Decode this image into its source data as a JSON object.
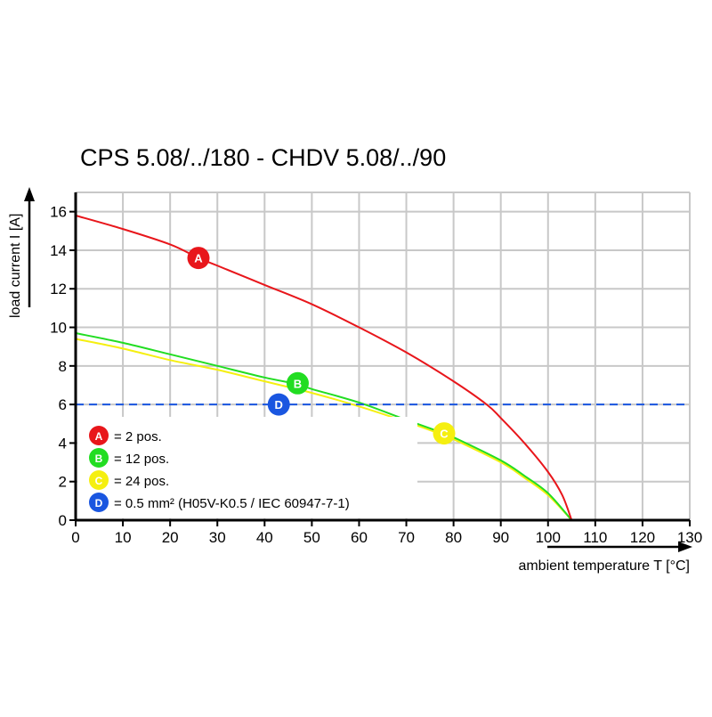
{
  "chart_data": {
    "type": "line",
    "title": "CPS 5.08/../180 - CHDV 5.08/../90",
    "xlabel": "ambient temperature T [°C]",
    "ylabel": "load current I [A]",
    "xlim": [
      0,
      130
    ],
    "ylim": [
      0,
      17
    ],
    "xticks": [
      0,
      10,
      20,
      30,
      40,
      50,
      60,
      70,
      80,
      90,
      100,
      110,
      120,
      130
    ],
    "yticks": [
      0,
      2,
      4,
      6,
      8,
      10,
      12,
      14,
      16
    ],
    "grid": true,
    "legend_placement": "bottom-left",
    "series": [
      {
        "name": "A",
        "label": "= 2 pos.",
        "color": "#e8161b",
        "marker": [
          26,
          13.6
        ],
        "x": [
          0,
          10,
          20,
          26,
          30,
          40,
          50,
          60,
          70,
          80,
          87,
          90,
          95,
          100,
          103,
          105
        ],
        "y": [
          15.8,
          15.1,
          14.3,
          13.6,
          13.2,
          12.2,
          11.2,
          10.0,
          8.7,
          7.2,
          6.0,
          5.3,
          4.0,
          2.5,
          1.3,
          0
        ]
      },
      {
        "name": "B",
        "label": "= 12 pos.",
        "color": "#22dd22",
        "marker": [
          47,
          7.1
        ],
        "x": [
          0,
          10,
          20,
          30,
          40,
          47,
          50,
          60,
          70,
          78,
          80,
          90,
          95,
          100,
          105
        ],
        "y": [
          9.7,
          9.2,
          8.6,
          8.0,
          7.4,
          7.05,
          6.8,
          6.1,
          5.2,
          4.5,
          4.3,
          3.1,
          2.3,
          1.4,
          0
        ]
      },
      {
        "name": "C",
        "label": "= 24 pos.",
        "color": "#f5ef10",
        "marker": [
          78,
          4.5
        ],
        "x": [
          0,
          10,
          20,
          30,
          40,
          50,
          60,
          70,
          78,
          80,
          90,
          95,
          100,
          105
        ],
        "y": [
          9.4,
          8.9,
          8.3,
          7.8,
          7.2,
          6.6,
          5.9,
          5.1,
          4.4,
          4.2,
          3.0,
          2.2,
          1.3,
          0
        ]
      },
      {
        "name": "D",
        "label": "= 0.5 mm² (H05V-K0.5 / IEC 60947-7-1)",
        "color": "#1a56e0",
        "marker": [
          43,
          6
        ],
        "dashed": true,
        "x": [
          0,
          130
        ],
        "y": [
          6,
          6
        ]
      }
    ]
  }
}
